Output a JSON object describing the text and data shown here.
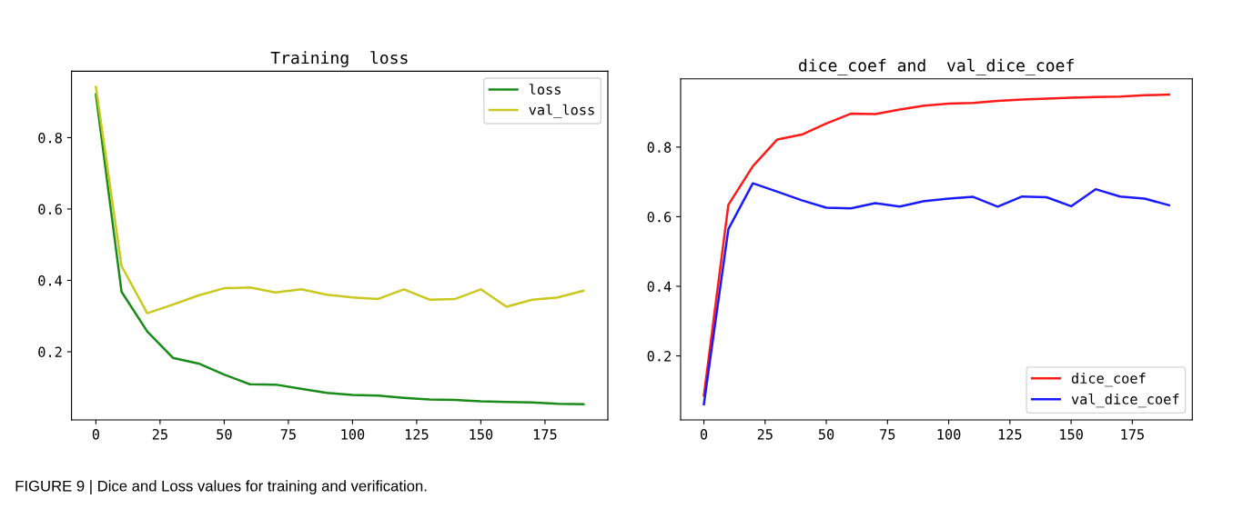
{
  "chart_data": [
    {
      "type": "line",
      "title": "Training  loss",
      "x": [
        0,
        10,
        20,
        30,
        40,
        50,
        60,
        70,
        80,
        90,
        100,
        110,
        120,
        130,
        140,
        150,
        160,
        170,
        180,
        190
      ],
      "series": [
        {
          "name": "loss",
          "color": "#1a8a1a",
          "values": [
            0.921,
            0.368,
            0.257,
            0.183,
            0.167,
            0.136,
            0.109,
            0.108,
            0.096,
            0.085,
            0.079,
            0.077,
            0.071,
            0.066,
            0.065,
            0.061,
            0.059,
            0.058,
            0.054,
            0.053
          ]
        },
        {
          "name": "val_loss",
          "color": "#c8c81e",
          "values": [
            0.942,
            0.44,
            0.308,
            0.332,
            0.358,
            0.378,
            0.38,
            0.366,
            0.375,
            0.36,
            0.352,
            0.348,
            0.375,
            0.346,
            0.348,
            0.375,
            0.326,
            0.346,
            0.352,
            0.371
          ]
        }
      ],
      "xlim": [
        -9.5,
        199.5
      ],
      "xticks": [
        0,
        25,
        50,
        75,
        100,
        125,
        150,
        175
      ],
      "ylim": [
        0.009,
        0.986
      ],
      "yticks": [
        0.2,
        0.4,
        0.6,
        0.8
      ],
      "grid": false,
      "legend": "top right",
      "marker": "none",
      "line_style": "solid",
      "annotations": [
        "FIGURE 9 | Dice and Loss values for training and verification."
      ]
    },
    {
      "type": "line",
      "title": "dice_coef and  val_dice_coef",
      "x": [
        0,
        10,
        20,
        30,
        40,
        50,
        60,
        70,
        80,
        90,
        100,
        110,
        120,
        130,
        140,
        150,
        160,
        170,
        180,
        190
      ],
      "series": [
        {
          "name": "dice_coef",
          "color": "#ff1a1a",
          "values": [
            0.086,
            0.634,
            0.745,
            0.822,
            0.836,
            0.868,
            0.896,
            0.895,
            0.908,
            0.919,
            0.925,
            0.927,
            0.933,
            0.937,
            0.939,
            0.942,
            0.944,
            0.945,
            0.949,
            0.951
          ]
        },
        {
          "name": "val_dice_coef",
          "color": "#1a1aff",
          "values": [
            0.061,
            0.564,
            0.696,
            0.672,
            0.647,
            0.626,
            0.624,
            0.639,
            0.629,
            0.645,
            0.652,
            0.657,
            0.629,
            0.658,
            0.656,
            0.63,
            0.679,
            0.658,
            0.652,
            0.633
          ]
        }
      ],
      "xlim": [
        -9.5,
        199.5
      ],
      "xticks": [
        0,
        25,
        50,
        75,
        100,
        125,
        150,
        175
      ],
      "ylim": [
        0.016,
        0.996
      ],
      "yticks": [
        0.2,
        0.4,
        0.6,
        0.8
      ],
      "grid": false,
      "legend": "bottom right",
      "marker": "none",
      "line_style": "solid"
    }
  ]
}
